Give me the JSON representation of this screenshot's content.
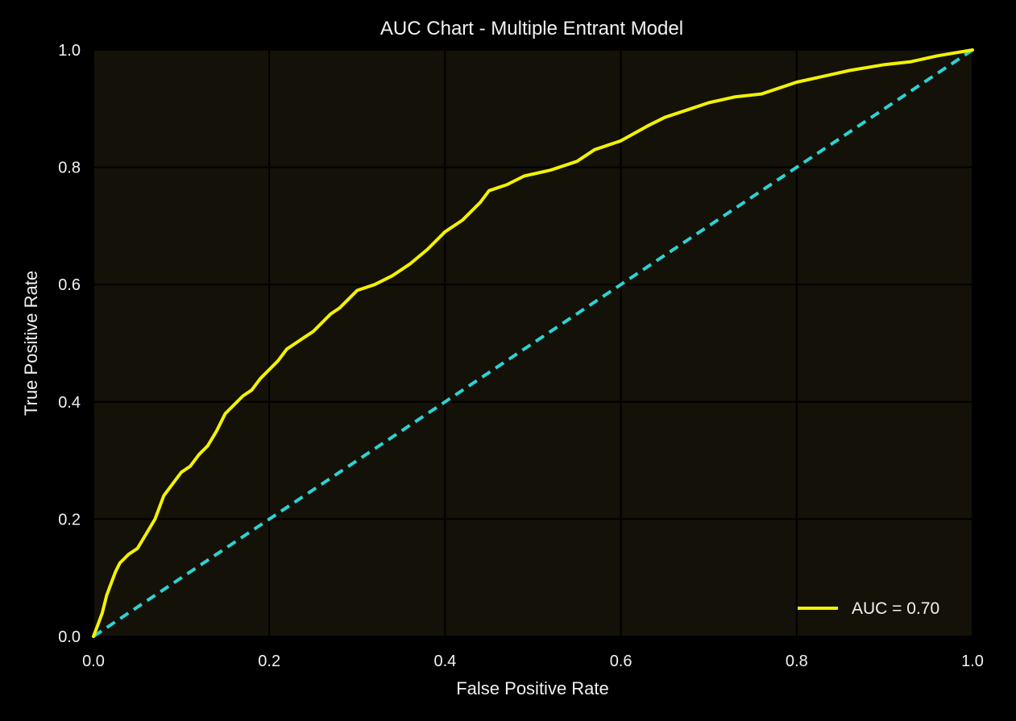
{
  "chart_data": {
    "type": "line",
    "title": "AUC Chart - Multiple Entrant Model",
    "xlabel": "False Positive Rate",
    "ylabel": "True Positive Rate",
    "xlim": [
      0.0,
      1.0
    ],
    "ylim": [
      0.0,
      1.0
    ],
    "x_ticks": [
      "0.0",
      "0.2",
      "0.4",
      "0.6",
      "0.8",
      "1.0"
    ],
    "y_ticks": [
      "0.0",
      "0.2",
      "0.4",
      "0.6",
      "0.8",
      "1.0"
    ],
    "x_tick_values": [
      0.0,
      0.2,
      0.4,
      0.6,
      0.8,
      1.0
    ],
    "y_tick_values": [
      0.0,
      0.2,
      0.4,
      0.6,
      0.8,
      1.0
    ],
    "grid": true,
    "legend_position": "bottom-right",
    "colors": {
      "background": "#000000",
      "plot_area": "#141108",
      "grid": "#000000",
      "roc": "#f2f200",
      "diagonal": "#2cd3d3",
      "text": "#f2f2f2"
    },
    "series": [
      {
        "name": "AUC = 0.70",
        "style": "solid",
        "color": "#f2f200",
        "points": [
          [
            0.0,
            0.0
          ],
          [
            0.005,
            0.02
          ],
          [
            0.01,
            0.04
          ],
          [
            0.015,
            0.07
          ],
          [
            0.02,
            0.09
          ],
          [
            0.025,
            0.11
          ],
          [
            0.03,
            0.125
          ],
          [
            0.04,
            0.14
          ],
          [
            0.05,
            0.15
          ],
          [
            0.06,
            0.175
          ],
          [
            0.07,
            0.2
          ],
          [
            0.08,
            0.24
          ],
          [
            0.09,
            0.26
          ],
          [
            0.1,
            0.28
          ],
          [
            0.11,
            0.29
          ],
          [
            0.12,
            0.31
          ],
          [
            0.13,
            0.325
          ],
          [
            0.14,
            0.35
          ],
          [
            0.15,
            0.38
          ],
          [
            0.16,
            0.395
          ],
          [
            0.17,
            0.41
          ],
          [
            0.18,
            0.42
          ],
          [
            0.19,
            0.44
          ],
          [
            0.2,
            0.455
          ],
          [
            0.21,
            0.47
          ],
          [
            0.22,
            0.49
          ],
          [
            0.23,
            0.5
          ],
          [
            0.24,
            0.51
          ],
          [
            0.25,
            0.52
          ],
          [
            0.26,
            0.535
          ],
          [
            0.27,
            0.55
          ],
          [
            0.28,
            0.56
          ],
          [
            0.29,
            0.575
          ],
          [
            0.3,
            0.59
          ],
          [
            0.32,
            0.6
          ],
          [
            0.34,
            0.615
          ],
          [
            0.36,
            0.635
          ],
          [
            0.38,
            0.66
          ],
          [
            0.4,
            0.69
          ],
          [
            0.42,
            0.71
          ],
          [
            0.44,
            0.74
          ],
          [
            0.45,
            0.76
          ],
          [
            0.47,
            0.77
          ],
          [
            0.49,
            0.785
          ],
          [
            0.52,
            0.795
          ],
          [
            0.55,
            0.81
          ],
          [
            0.57,
            0.83
          ],
          [
            0.6,
            0.845
          ],
          [
            0.63,
            0.87
          ],
          [
            0.65,
            0.885
          ],
          [
            0.68,
            0.9
          ],
          [
            0.7,
            0.91
          ],
          [
            0.73,
            0.92
          ],
          [
            0.76,
            0.925
          ],
          [
            0.78,
            0.935
          ],
          [
            0.8,
            0.945
          ],
          [
            0.83,
            0.955
          ],
          [
            0.86,
            0.965
          ],
          [
            0.9,
            0.975
          ],
          [
            0.93,
            0.98
          ],
          [
            0.96,
            0.99
          ],
          [
            1.0,
            1.0
          ]
        ]
      },
      {
        "name": "",
        "style": "dashed",
        "color": "#2cd3d3",
        "points": [
          [
            0.0,
            0.0
          ],
          [
            1.0,
            1.0
          ]
        ]
      }
    ]
  }
}
